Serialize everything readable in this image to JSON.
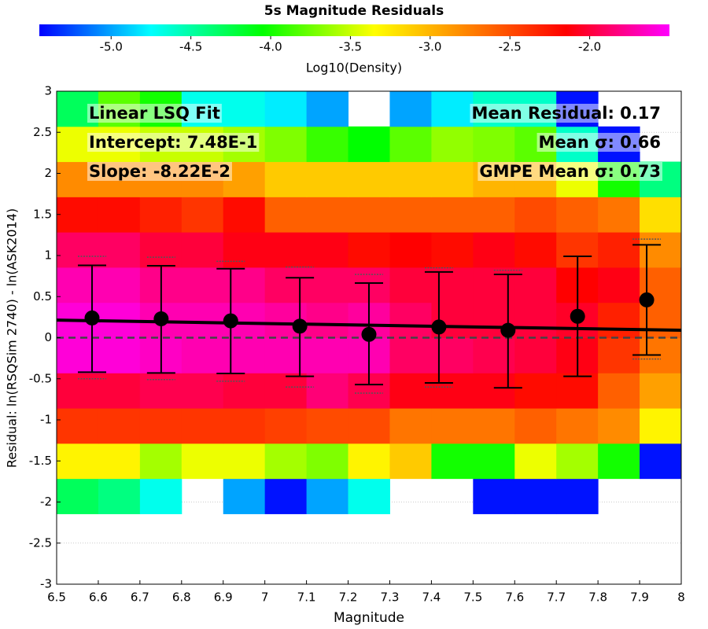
{
  "chart_data": {
    "type": "heatmap-errorbar",
    "title": "5s Magnitude Residuals",
    "xlabel": "Magnitude",
    "ylabel": "Residual: ln(RSQSim 2740) - ln(ASK2014)",
    "colorbar_label": "Log10(Density)",
    "xlim": [
      6.5,
      8
    ],
    "ylim": [
      -3,
      3
    ],
    "xticks": [
      6.5,
      6.6,
      6.7,
      6.8,
      6.9,
      7,
      7.1,
      7.2,
      7.3,
      7.4,
      7.5,
      7.6,
      7.7,
      7.8,
      7.9,
      8
    ],
    "yticks": [
      -3,
      -2.5,
      -2,
      -1.5,
      -1,
      -0.5,
      0,
      0.5,
      1,
      1.5,
      2,
      2.5,
      3
    ],
    "grid": true,
    "clim": [
      -5.45,
      -1.5
    ],
    "cticks": [
      {
        "value": -5,
        "label": "-5.0"
      },
      -4.5,
      {
        "value": -4,
        "label": "-4.0"
      },
      -3.5,
      {
        "value": -3,
        "label": "-3.0"
      },
      -2.5,
      {
        "value": -2,
        "label": "-2.0"
      }
    ],
    "colormap": [
      {
        "value": -5.45,
        "color": "#0000ff"
      },
      {
        "value": -4.75,
        "color": "#00ffff"
      },
      {
        "value": -4.05,
        "color": "#00ff00"
      },
      {
        "value": -3.35,
        "color": "#ffff00"
      },
      {
        "value": -2.75,
        "color": "#ff8000"
      },
      {
        "value": -2.15,
        "color": "#ff0000"
      },
      {
        "value": -1.5,
        "color": "#ff00ff"
      }
    ],
    "xbins": [
      6.5,
      6.6,
      6.7,
      6.8,
      6.9,
      7,
      7.1,
      7.2,
      7.3,
      7.4,
      7.5,
      7.6,
      7.7,
      7.8,
      7.9,
      8
    ],
    "ybins": [
      -3,
      -2.5714,
      -2.1429,
      -1.7143,
      -1.2857,
      -0.8571,
      -0.4286,
      0,
      0.4286,
      0.8571,
      1.2857,
      1.7143,
      2.1429,
      2.5714,
      3
    ],
    "z": [
      [
        null,
        null,
        null,
        null,
        null,
        null,
        null,
        null,
        null,
        null,
        null,
        null,
        null,
        null,
        null
      ],
      [
        null,
        null,
        null,
        null,
        null,
        null,
        null,
        null,
        null,
        null,
        null,
        null,
        null,
        null,
        null
      ],
      [
        -4.3,
        -4.4,
        -4.7,
        null,
        -5.0,
        -5.4,
        -5.0,
        -4.7,
        null,
        null,
        -5.4,
        -5.4,
        -5.4,
        null,
        null
      ],
      [
        -3.3,
        -3.3,
        -3.6,
        -3.4,
        -3.4,
        -3.6,
        -3.7,
        -3.3,
        -3.1,
        -4.0,
        -4.0,
        -3.4,
        -3.6,
        -4.0,
        -5.4
      ],
      [
        -2.4,
        -2.4,
        -2.4,
        -2.4,
        -2.4,
        -2.45,
        -2.5,
        -2.5,
        -2.7,
        -2.7,
        -2.7,
        -2.6,
        -2.7,
        -2.8,
        -3.3
      ],
      [
        -2.0,
        -2.0,
        -1.95,
        -1.95,
        -2.0,
        -2.0,
        -1.85,
        -1.95,
        -2.1,
        -2.1,
        -2.1,
        -2.2,
        -2.2,
        -2.6,
        -2.9
      ],
      [
        -1.6,
        -1.6,
        -1.65,
        -1.7,
        -1.7,
        -1.7,
        -1.7,
        -1.7,
        -1.9,
        -1.9,
        -1.95,
        -2.0,
        -2.1,
        -2.4,
        -2.7
      ],
      [
        -1.6,
        -1.6,
        -1.7,
        -1.7,
        -1.7,
        -1.75,
        -1.8,
        -1.75,
        -1.9,
        -2.0,
        -2.0,
        -2.0,
        -2.05,
        -2.3,
        -2.6
      ],
      [
        -1.7,
        -1.7,
        -1.8,
        -1.8,
        -1.8,
        -1.9,
        -1.9,
        -1.9,
        -2.0,
        -2.0,
        -2.0,
        -2.0,
        -2.15,
        -2.1,
        -2.6
      ],
      [
        -1.9,
        -1.9,
        -2.0,
        -2.0,
        -2.1,
        -2.1,
        -2.1,
        -2.2,
        -2.15,
        -2.2,
        -2.1,
        -2.2,
        -2.4,
        -2.3,
        -2.8
      ],
      [
        -2.2,
        -2.2,
        -2.3,
        -2.4,
        -2.2,
        -2.6,
        -2.6,
        -2.6,
        -2.6,
        -2.6,
        -2.6,
        -2.5,
        -2.6,
        -2.7,
        -3.2
      ],
      [
        -2.8,
        -2.8,
        -2.8,
        -2.8,
        -2.9,
        -3.1,
        -3.1,
        -3.1,
        -3.1,
        -3.1,
        -3.0,
        -3.0,
        -3.4,
        -4.0,
        -4.4
      ],
      [
        -3.4,
        -3.4,
        -3.5,
        -3.5,
        -3.6,
        -3.7,
        -3.9,
        -4.05,
        -3.8,
        -3.65,
        -3.7,
        -3.8,
        -4.6,
        -5.4,
        null
      ],
      [
        -4.3,
        -3.8,
        -4.0,
        -4.7,
        -4.7,
        -4.8,
        -5.0,
        null,
        -5.0,
        -4.8,
        -4.6,
        -4.6,
        -5.4,
        null,
        null
      ]
    ],
    "points": {
      "x": [
        6.585,
        6.751,
        6.918,
        7.084,
        7.25,
        7.418,
        7.584,
        7.751,
        7.917
      ],
      "y": [
        0.24,
        0.23,
        0.205,
        0.14,
        0.04,
        0.13,
        0.09,
        0.26,
        0.46
      ],
      "err_low": [
        -0.42,
        -0.43,
        -0.435,
        -0.47,
        -0.57,
        -0.55,
        -0.61,
        -0.47,
        -0.21
      ],
      "err_high": [
        0.88,
        0.876,
        0.84,
        0.73,
        0.665,
        0.8,
        0.77,
        0.99,
        1.13
      ],
      "gmpe_low": [
        -0.5,
        -0.51,
        -0.53,
        -0.6,
        -0.675,
        -0.6,
        -0.61,
        -0.47,
        -0.26
      ],
      "gmpe_high": [
        0.99,
        0.98,
        0.93,
        0.86,
        0.77,
        0.85,
        0.82,
        0.99,
        1.2
      ]
    },
    "fit": {
      "intercept": 0.748,
      "slope": -0.0822
    },
    "hline": 0,
    "annotations_left": [
      "Linear LSQ Fit",
      "Intercept: 7.48E-1",
      "Slope: -8.22E-2"
    ],
    "annotations_right": [
      "Mean Residual: 0.17",
      "Mean σ: 0.66",
      "GMPE Mean σ: 0.73"
    ]
  }
}
